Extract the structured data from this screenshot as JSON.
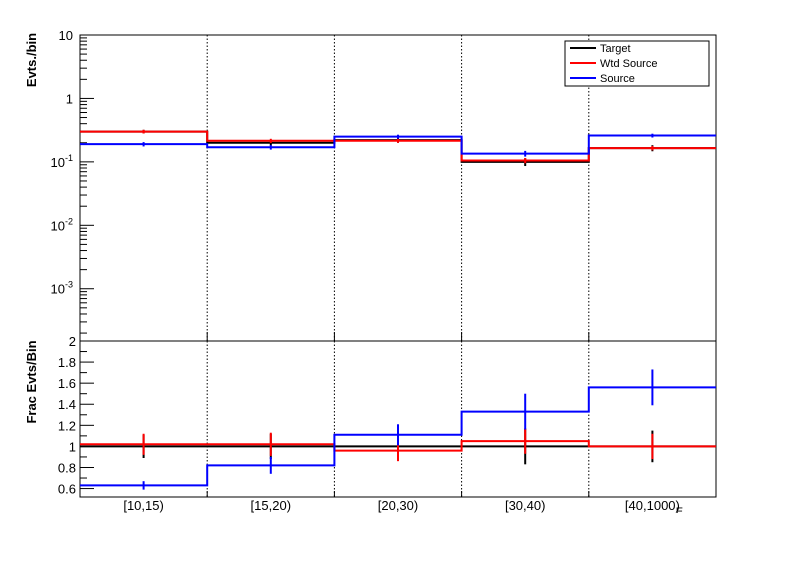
{
  "chart_data": [
    {
      "type": "step",
      "name": "top-panel",
      "ylabel": "Evts./bin",
      "yscale": "log",
      "ylim": [
        0.00015,
        10
      ],
      "ytick_labels": [
        {
          "base": "10",
          "exp": "",
          "value": 10
        },
        {
          "base": "1",
          "exp": "",
          "value": 1
        },
        {
          "base": "10",
          "exp": "-1",
          "value": 0.1
        },
        {
          "base": "10",
          "exp": "-2",
          "value": 0.01
        },
        {
          "base": "10",
          "exp": "-3",
          "value": 0.001
        }
      ],
      "categories": [
        "[10,15)",
        "[15,20)",
        "[20,30)",
        "[30,40)",
        "[40,1000)"
      ],
      "legend": {
        "placement": "top-right",
        "entries": [
          "Target",
          "Wtd Source",
          "Source"
        ]
      },
      "series": [
        {
          "name": "Target",
          "color": "#000000",
          "values": [
            0.3,
            0.2,
            0.22,
            0.1,
            0.165
          ],
          "errors": [
            0.02,
            0.02,
            0.02,
            0.014,
            0.018
          ]
        },
        {
          "name": "Wtd Source",
          "color": "#ff0000",
          "values": [
            0.3,
            0.215,
            0.215,
            0.105,
            0.165
          ],
          "errors": [
            0.02,
            0.016,
            0.015,
            0.01,
            0.013
          ]
        },
        {
          "name": "Source",
          "color": "#0000ff",
          "values": [
            0.19,
            0.17,
            0.25,
            0.135,
            0.26
          ],
          "errors": [
            0.015,
            0.014,
            0.018,
            0.014,
            0.018
          ]
        }
      ]
    },
    {
      "type": "step",
      "name": "ratio-panel",
      "ylabel": "Frac Evts/Bin",
      "xlabel": "E_{muonEnd}",
      "ylim": [
        0.52,
        2.0
      ],
      "yticks": [
        0.6,
        0.8,
        1,
        1.2,
        1.4,
        1.6,
        1.8,
        2
      ],
      "ytick_labels": [
        "0.6",
        "0.8",
        "1",
        "1.2",
        "1.4",
        "1.6",
        "1.8",
        "2"
      ],
      "categories": [
        "[10,15)",
        "[15,20)",
        "[20,30)",
        "[30,40)",
        "[40,1000)"
      ],
      "series": [
        {
          "name": "Target",
          "color": "#000000",
          "values": [
            1.0,
            1.0,
            1.0,
            1.0,
            1.0
          ],
          "errors": [
            0.11,
            0.12,
            0.11,
            0.17,
            0.15
          ]
        },
        {
          "name": "Wtd Source",
          "color": "#ff0000",
          "values": [
            1.02,
            1.02,
            0.96,
            1.05,
            1.0
          ],
          "errors": [
            0.1,
            0.11,
            0.1,
            0.12,
            0.12
          ]
        },
        {
          "name": "Source",
          "color": "#0000ff",
          "values": [
            0.63,
            0.82,
            1.11,
            1.33,
            1.56
          ],
          "errors": [
            0.04,
            0.08,
            0.1,
            0.17,
            0.17
          ]
        }
      ]
    }
  ]
}
